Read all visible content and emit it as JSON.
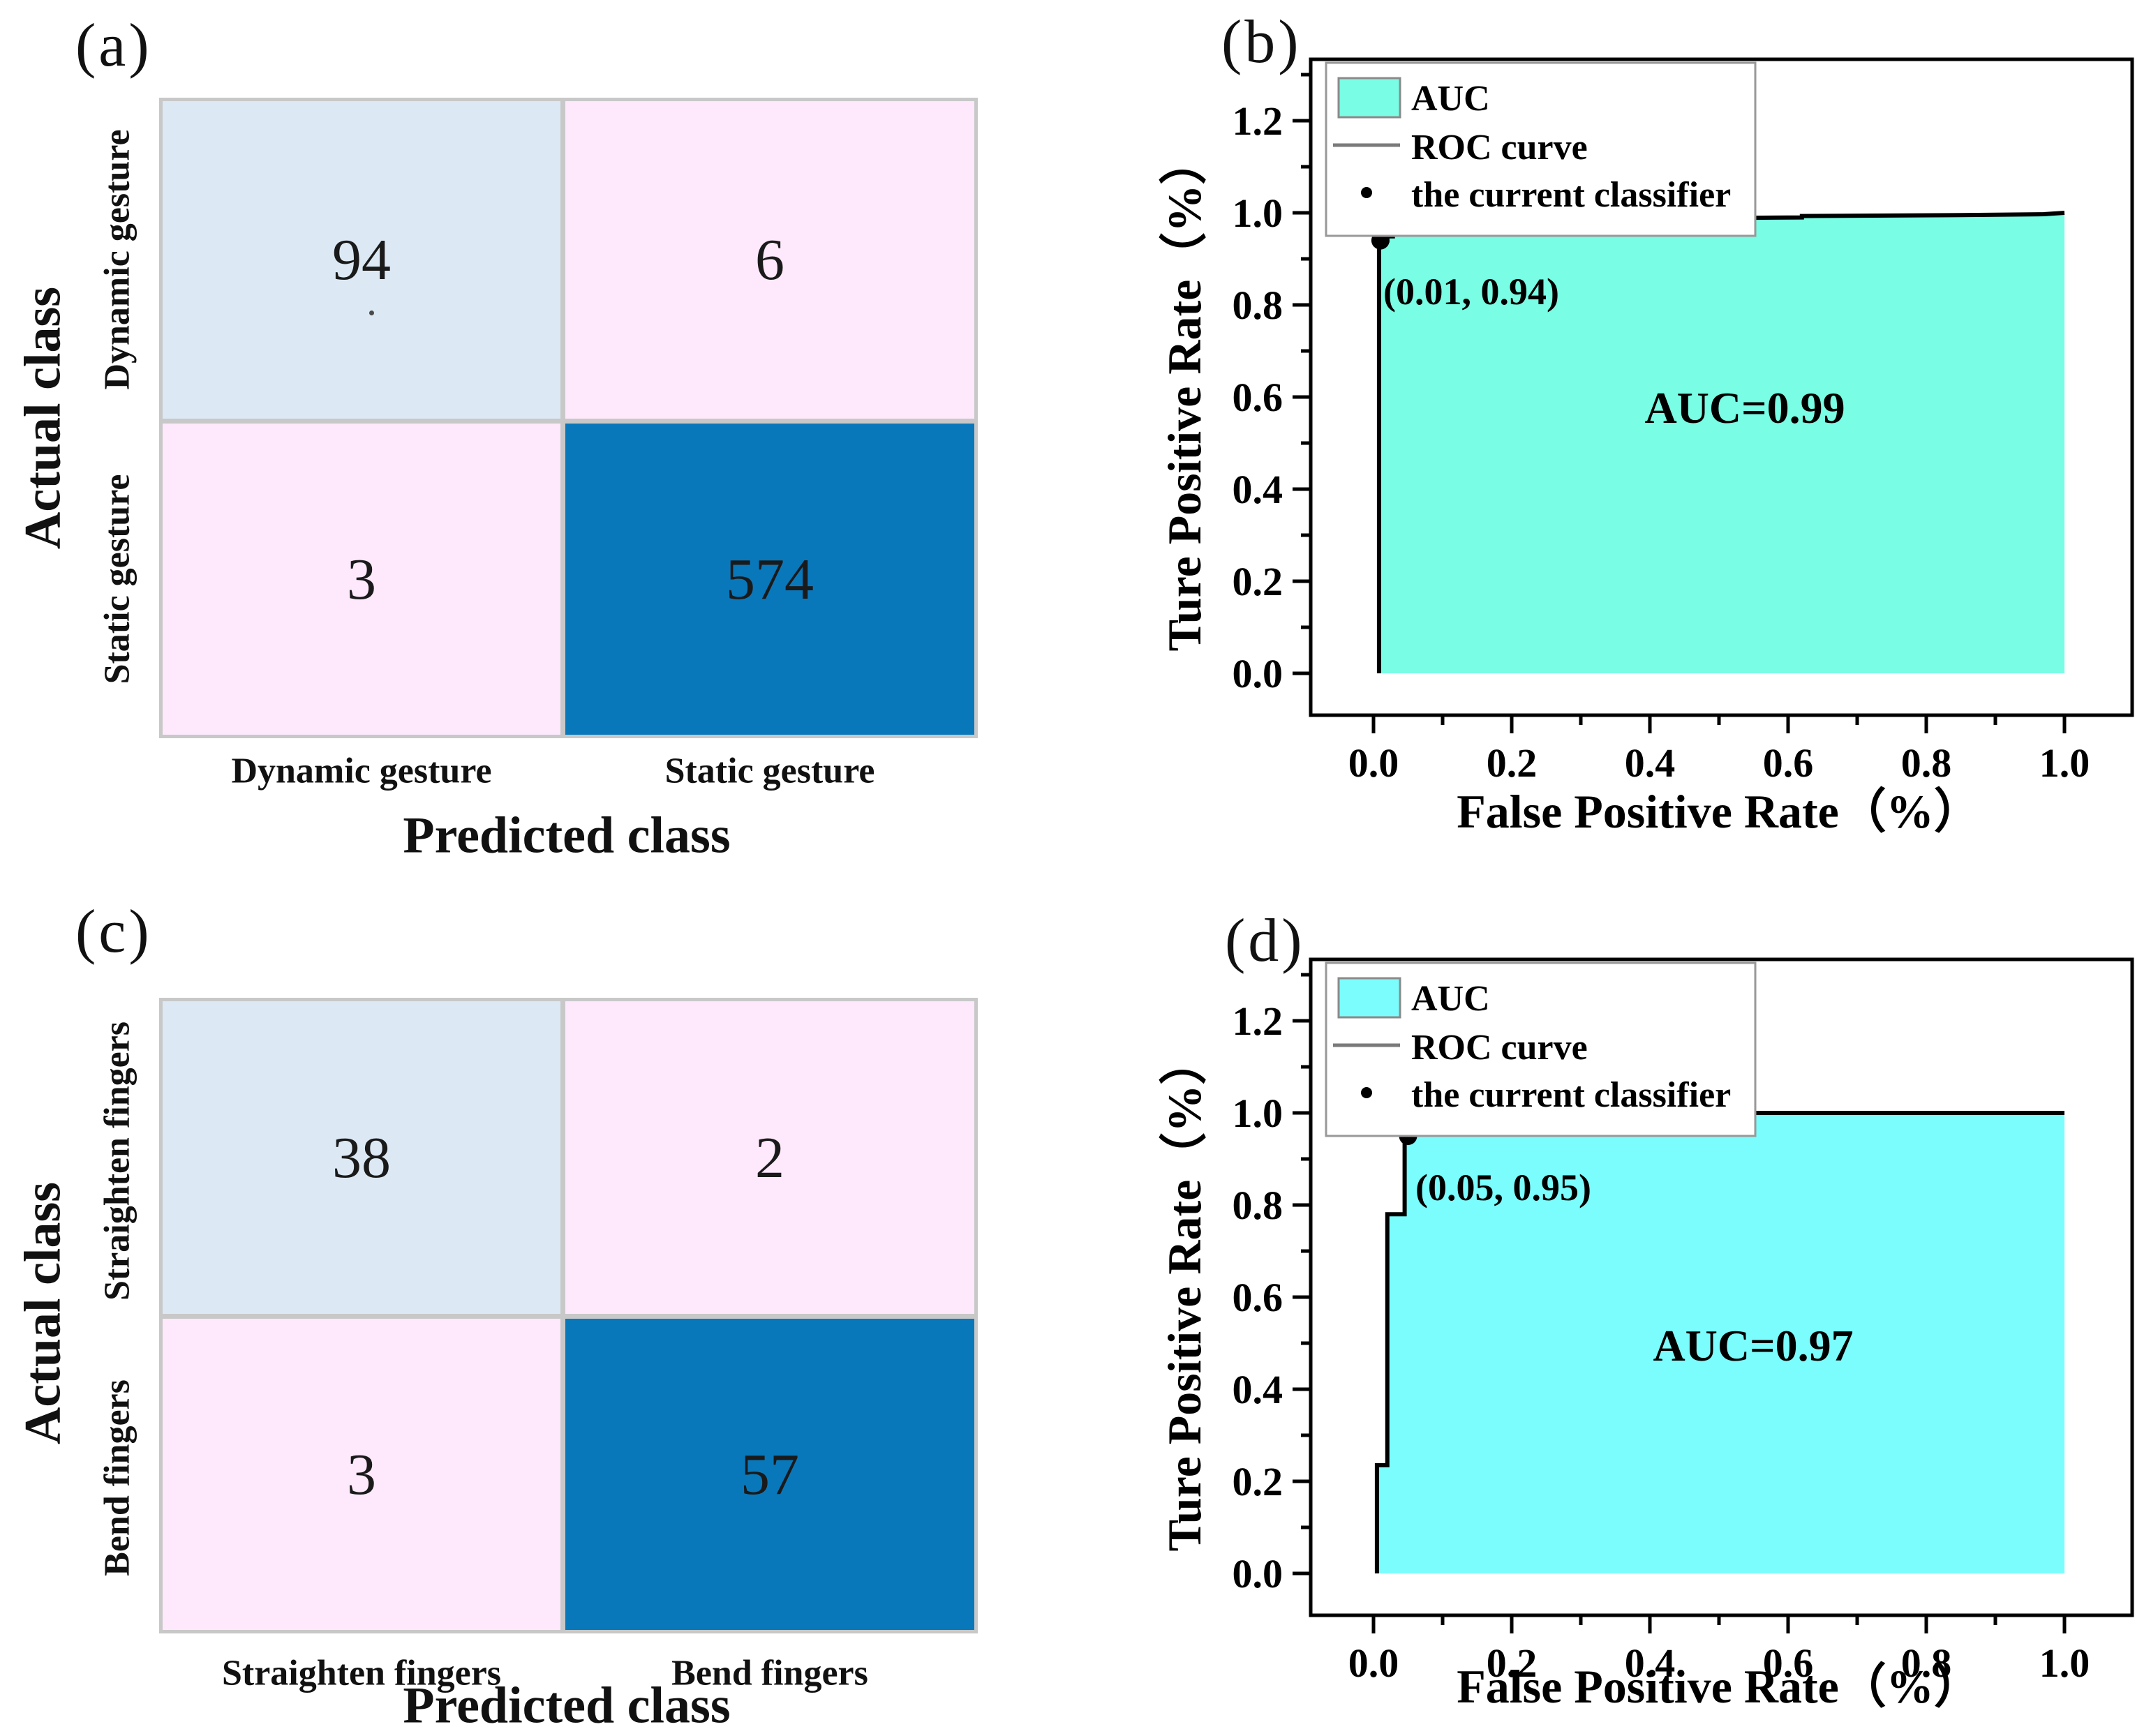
{
  "legend": {
    "auc": "AUC",
    "roc_curve": "ROC curve",
    "classifier": "the current classifier"
  },
  "chart_data": [
    {
      "id": "a",
      "panel_label": "(a)",
      "type": "heatmap",
      "subtype": "confusion_matrix",
      "ylabel": "Actual class",
      "xlabel": "Predicted class",
      "rows": [
        "Dynamic gesture",
        "Static gesture"
      ],
      "categories": [
        "Dynamic gesture",
        "Static gesture"
      ],
      "values": [
        [
          94,
          6
        ],
        [
          3,
          574
        ]
      ],
      "cell_text": [
        [
          "94",
          "6"
        ],
        [
          "3",
          "574"
        ]
      ],
      "cell_colors": [
        [
          "#dce9f5",
          "#fde9fb"
        ],
        [
          "#fde9fb",
          "#0978bb"
        ]
      ],
      "grid_line_color": "#c8c8c8"
    },
    {
      "id": "b",
      "panel_label": "(b)",
      "type": "area",
      "subtype": "roc",
      "xlabel": "False Positive Rate（%）",
      "ylabel": "Ture Positive Rate（%）",
      "x_ticks": [
        "0.0",
        "0.2",
        "0.4",
        "0.6",
        "0.8",
        "1.0"
      ],
      "y_ticks": [
        "0.0",
        "0.2",
        "0.4",
        "0.6",
        "0.8",
        "1.0",
        "1.2"
      ],
      "xlim": [
        -0.09,
        1.1
      ],
      "ylim": [
        -0.09,
        1.33
      ],
      "grid": false,
      "legend_position": "top-left",
      "fill_color": "#79fde4",
      "line_color": "#000000",
      "auc_value": 0.99,
      "auc_label": "AUC=0.99",
      "classifier_point": [
        0.01,
        0.94
      ],
      "point_label": "(0.01, 0.94)",
      "roc_points": [
        [
          0.008,
          0
        ],
        [
          0.008,
          0.94
        ],
        [
          0.02,
          0.94
        ],
        [
          0.02,
          0.949
        ],
        [
          0.028,
          0.949
        ],
        [
          0.028,
          0.956
        ],
        [
          0.038,
          0.956
        ],
        [
          0.038,
          0.963
        ],
        [
          0.05,
          0.963
        ],
        [
          0.05,
          0.969
        ],
        [
          0.1,
          0.971
        ],
        [
          0.19,
          0.974
        ],
        [
          0.19,
          0.986
        ],
        [
          0.45,
          0.988
        ],
        [
          0.62,
          0.99
        ],
        [
          0.62,
          0.993
        ],
        [
          0.85,
          0.995
        ],
        [
          0.97,
          0.997
        ],
        [
          1.0,
          1.0
        ]
      ]
    },
    {
      "id": "c",
      "panel_label": "(c)",
      "type": "heatmap",
      "subtype": "confusion_matrix",
      "ylabel": "Actual class",
      "xlabel": "Predicted class",
      "rows": [
        "Straighten fingers",
        "Bend fingers"
      ],
      "categories": [
        "Straighten fingers",
        "Bend fingers"
      ],
      "values": [
        [
          38,
          2
        ],
        [
          3,
          57
        ]
      ],
      "cell_text": [
        [
          "38",
          "2"
        ],
        [
          "3",
          "57"
        ]
      ],
      "cell_colors": [
        [
          "#dce9f5",
          "#fde9fb"
        ],
        [
          "#fde9fb",
          "#0978bb"
        ]
      ],
      "grid_line_color": "#c8c8c8"
    },
    {
      "id": "d",
      "panel_label": "(d)",
      "type": "area",
      "subtype": "roc",
      "xlabel": "False Positive Rate（%）",
      "ylabel": "Ture Positive Rate（%）",
      "x_ticks": [
        "0.0",
        "0.2",
        "0.4",
        "0.6",
        "0.8",
        "1.0"
      ],
      "y_ticks": [
        "0.0",
        "0.2",
        "0.4",
        "0.6",
        "0.8",
        "1.0",
        "1.2"
      ],
      "xlim": [
        -0.09,
        1.1
      ],
      "ylim": [
        -0.09,
        1.33
      ],
      "grid": false,
      "legend_position": "top-left",
      "fill_color": "#7bfdfd",
      "line_color": "#000000",
      "auc_value": 0.97,
      "auc_label": "AUC=0.97",
      "classifier_point": [
        0.05,
        0.95
      ],
      "point_label": "(0.05, 0.95)",
      "roc_points": [
        [
          0.005,
          0
        ],
        [
          0.005,
          0.235
        ],
        [
          0.02,
          0.235
        ],
        [
          0.02,
          0.78
        ],
        [
          0.045,
          0.78
        ],
        [
          0.045,
          0.955
        ],
        [
          0.44,
          0.955
        ],
        [
          0.44,
          0.972
        ],
        [
          0.47,
          0.972
        ],
        [
          0.47,
          1.0
        ],
        [
          1.0,
          1.0
        ]
      ]
    }
  ]
}
